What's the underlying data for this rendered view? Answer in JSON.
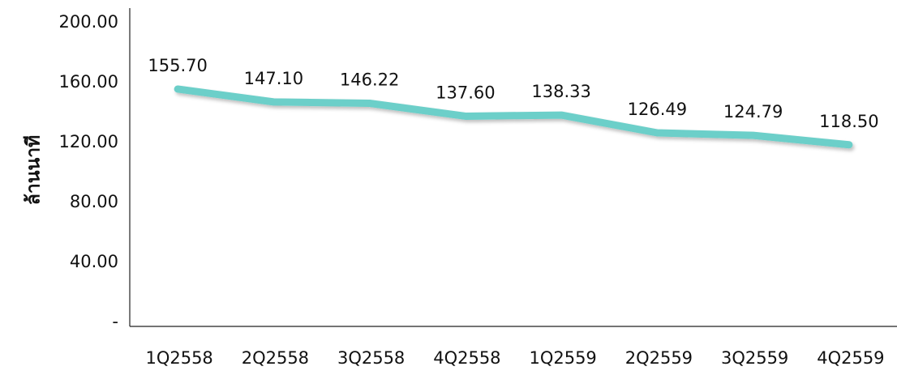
{
  "chart_data": {
    "type": "line",
    "y_label": "ล้านนาที",
    "categories": [
      "1Q2558",
      "2Q2558",
      "3Q2558",
      "4Q2558",
      "1Q2559",
      "2Q2559",
      "3Q2559",
      "4Q2559"
    ],
    "values": [
      155.7,
      147.1,
      146.22,
      137.6,
      138.33,
      126.49,
      124.79,
      118.5
    ],
    "value_labels": [
      "155.70",
      "147.10",
      "146.22",
      "137.60",
      "138.33",
      "126.49",
      "124.79",
      "118.50"
    ],
    "color": "#6ccfc9",
    "ylim": [
      0,
      200
    ],
    "yticks": [
      {
        "value": 0,
        "label": "-"
      },
      {
        "value": 40,
        "label": "40.00"
      },
      {
        "value": 80,
        "label": "80.00"
      },
      {
        "value": 120,
        "label": "120.00"
      },
      {
        "value": 160,
        "label": "160.00"
      },
      {
        "value": 200,
        "label": "200.00"
      }
    ],
    "grid": false
  }
}
